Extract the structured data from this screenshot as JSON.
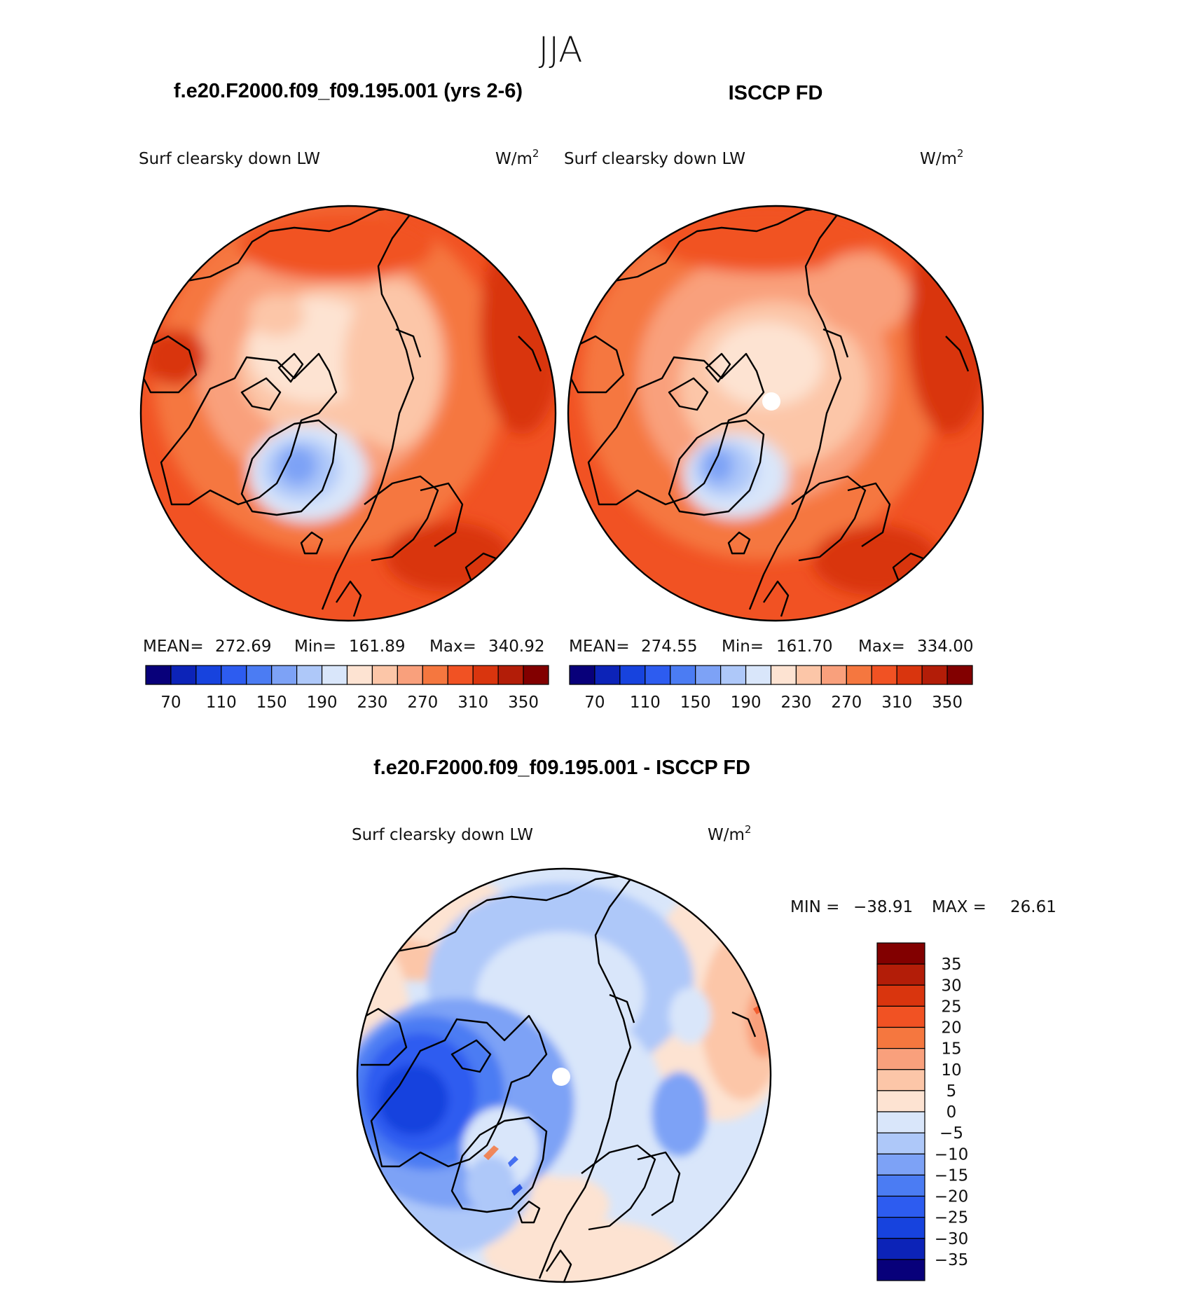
{
  "page": {
    "title": "JJA",
    "panel_titles": {
      "model": "f.e20.F2000.f09_f09.195.001 (yrs 2-6)",
      "obs": "ISCCP FD",
      "diff": "f.e20.F2000.f09_f09.195.001 - ISCCP FD"
    }
  },
  "chart_data": [
    {
      "type": "heatmap",
      "id": "model",
      "title": "f.e20.F2000.f09_f09.195.001 (yrs 2-6)",
      "variable": "Surf clearsky down LW",
      "units": "W/m",
      "units_sup": "2",
      "stats": {
        "mean_label": "MEAN=",
        "mean": "272.69",
        "min_label": "Min=",
        "min": "161.89",
        "max_label": "Max=",
        "max": "340.92"
      },
      "colorbar": {
        "colors": [
          "#08007a",
          "#0c23b8",
          "#1743de",
          "#2d5cf0",
          "#4b7cf3",
          "#7da2f6",
          "#aec8f9",
          "#d9e6fa",
          "#fde3d2",
          "#fcc6a8",
          "#f9a07c",
          "#f5773f",
          "#f15223",
          "#d9350e",
          "#b31d08",
          "#820000"
        ],
        "tick_labels": [
          "70",
          "110",
          "150",
          "190",
          "230",
          "270",
          "310",
          "350"
        ]
      }
    },
    {
      "type": "heatmap",
      "id": "obs",
      "title": "ISCCP FD",
      "variable": "Surf clearsky down LW",
      "units": "W/m",
      "units_sup": "2",
      "stats": {
        "mean_label": "MEAN=",
        "mean": "274.55",
        "min_label": "Min=",
        "min": "161.70",
        "max_label": "Max=",
        "max": "334.00"
      },
      "colorbar": {
        "colors": [
          "#08007a",
          "#0c23b8",
          "#1743de",
          "#2d5cf0",
          "#4b7cf3",
          "#7da2f6",
          "#aec8f9",
          "#d9e6fa",
          "#fde3d2",
          "#fcc6a8",
          "#f9a07c",
          "#f5773f",
          "#f15223",
          "#d9350e",
          "#b31d08",
          "#820000"
        ],
        "tick_labels": [
          "70",
          "110",
          "150",
          "190",
          "230",
          "270",
          "310",
          "350"
        ]
      }
    },
    {
      "type": "heatmap",
      "id": "diff",
      "title": "f.e20.F2000.f09_f09.195.001 - ISCCP FD",
      "variable": "Surf clearsky down LW",
      "units": "W/m",
      "units_sup": "2",
      "stats": {
        "min_label": "MIN =",
        "min": "−38.91",
        "max_label": "MAX =",
        "max": "26.61"
      },
      "colorbar": {
        "colors_top_to_bottom": [
          "#820000",
          "#b31d08",
          "#d9350e",
          "#f15223",
          "#f5773f",
          "#f9a07c",
          "#fcc6a8",
          "#fde3d2",
          "#d9e6fa",
          "#aec8f9",
          "#7da2f6",
          "#4b7cf3",
          "#2d5cf0",
          "#1743de",
          "#0c23b8",
          "#08007a"
        ],
        "tick_labels": [
          "35",
          "30",
          "25",
          "20",
          "15",
          "10",
          "5",
          "0",
          "−5",
          "−10",
          "−15",
          "−20",
          "−25",
          "−30",
          "−35"
        ]
      }
    }
  ]
}
